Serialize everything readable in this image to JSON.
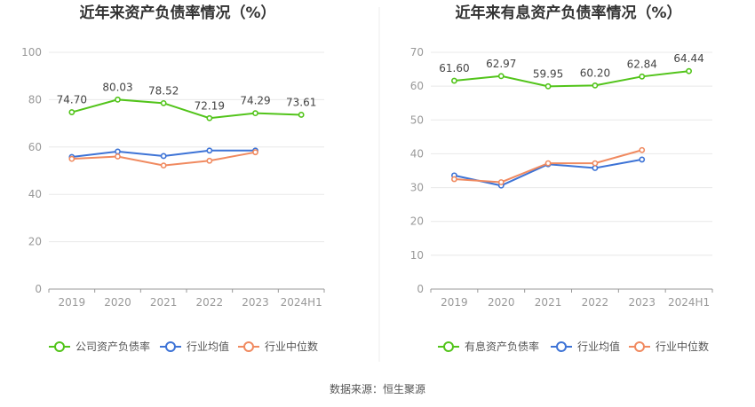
{
  "chart_data": [
    {
      "type": "line",
      "title": "近年来资产负债率情况（%）",
      "categories": [
        "2019",
        "2020",
        "2021",
        "2022",
        "2023",
        "2024H1"
      ],
      "ylim": [
        0,
        100
      ],
      "yticks": [
        "0",
        "20",
        "40",
        "60",
        "80",
        "100"
      ],
      "grid": true,
      "legend_position": "bottom",
      "series": [
        {
          "name": "公司资产负债率",
          "color": "#52c41a",
          "values": [
            74.7,
            80.03,
            78.52,
            72.19,
            74.29,
            73.61
          ],
          "labels": [
            "74.70",
            "80.03",
            "78.52",
            "72.19",
            "74.29",
            "73.61"
          ]
        },
        {
          "name": "行业均值",
          "color": "#3d73d6",
          "values": [
            55.8,
            58.1,
            56.2,
            58.5,
            58.5,
            null
          ]
        },
        {
          "name": "行业中位数",
          "color": "#f08a60",
          "values": [
            55.0,
            56.0,
            52.2,
            54.2,
            57.8,
            null
          ]
        }
      ]
    },
    {
      "type": "line",
      "title": "近年来有息资产负债率情况（%）",
      "categories": [
        "2019",
        "2020",
        "2021",
        "2022",
        "2023",
        "2024H1"
      ],
      "ylim": [
        0,
        70
      ],
      "yticks": [
        "0",
        "10",
        "20",
        "30",
        "40",
        "50",
        "60",
        "70"
      ],
      "grid": true,
      "legend_position": "bottom",
      "series": [
        {
          "name": "有息资产负债率",
          "color": "#52c41a",
          "values": [
            61.6,
            62.97,
            59.95,
            60.2,
            62.84,
            64.44
          ],
          "labels": [
            "61.60",
            "62.97",
            "59.95",
            "60.20",
            "62.84",
            "64.44"
          ]
        },
        {
          "name": "行业均值",
          "color": "#3d73d6",
          "values": [
            33.6,
            30.6,
            36.9,
            35.8,
            38.3,
            null
          ]
        },
        {
          "name": "行业中位数",
          "color": "#f08a60",
          "values": [
            32.5,
            31.6,
            37.2,
            37.2,
            41.1,
            null
          ]
        }
      ]
    }
  ],
  "source_text": "数据来源：恒生聚源"
}
